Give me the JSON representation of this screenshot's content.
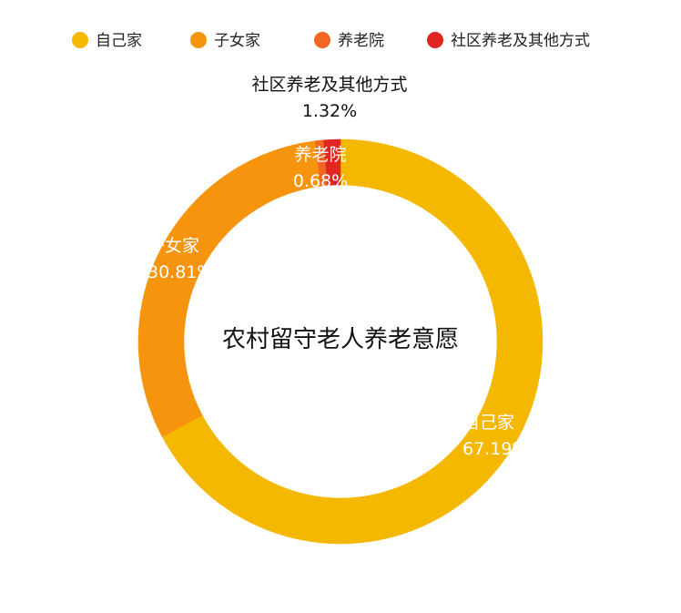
{
  "chart_data": {
    "type": "pie",
    "style": "donut",
    "title": "农村留守老人养老意愿",
    "legend_position": "top",
    "slices": [
      {
        "label": "自己家",
        "value": 67.19,
        "value_text": "67.19%",
        "color": "#F5B800"
      },
      {
        "label": "子女家",
        "value": 30.81,
        "value_text": "30.81%",
        "color": "#F7940E"
      },
      {
        "label": "养老院",
        "value": 0.68,
        "value_text": "0.68%",
        "color": "#F26522"
      },
      {
        "label": "社区养老及其他方式",
        "value": 1.32,
        "value_text": "1.32%",
        "color": "#E0271F"
      }
    ]
  }
}
